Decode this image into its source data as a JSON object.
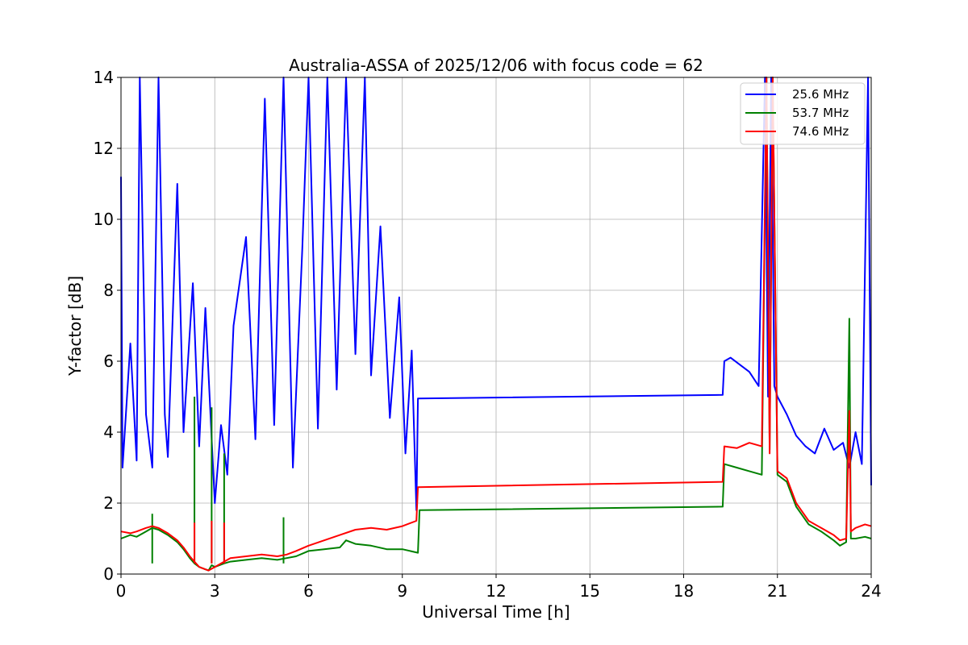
{
  "chart_data": {
    "type": "line",
    "title": "Australia-ASSA of 2025/12/06 with focus code = 62",
    "xlabel": "Universal Time [h]",
    "ylabel": "Y-factor [dB]",
    "xlim": [
      0,
      24
    ],
    "ylim": [
      0,
      14
    ],
    "xticks": [
      0,
      3,
      6,
      9,
      12,
      15,
      18,
      21,
      24
    ],
    "yticks": [
      0,
      2,
      4,
      6,
      8,
      10,
      12,
      14
    ],
    "grid": true,
    "legend_position": "top-right",
    "series": [
      {
        "name": "25.6 MHz",
        "color": "#0000ff",
        "x": [
          0,
          0.05,
          0.3,
          0.5,
          0.6,
          0.8,
          1.0,
          1.2,
          1.4,
          1.5,
          1.8,
          2.0,
          2.3,
          2.5,
          2.7,
          2.9,
          3.0,
          3.2,
          3.4,
          3.6,
          4.0,
          4.3,
          4.6,
          4.9,
          5.2,
          5.5,
          5.8,
          6.0,
          6.3,
          6.6,
          6.9,
          7.2,
          7.5,
          7.8,
          8.0,
          8.3,
          8.6,
          8.9,
          9.1,
          9.3,
          9.45,
          9.5,
          19.25,
          19.3,
          19.5,
          19.8,
          20.1,
          20.4,
          20.6,
          20.7,
          20.8,
          20.9,
          21.0,
          21.3,
          21.6,
          21.9,
          22.2,
          22.5,
          22.8,
          23.1,
          23.3,
          23.5,
          23.7,
          23.9,
          24.0
        ],
        "y": [
          11.2,
          3.0,
          6.5,
          3.2,
          14.0,
          4.5,
          3.0,
          14.0,
          4.5,
          3.3,
          11.0,
          4.0,
          8.2,
          3.6,
          7.5,
          3.8,
          2.0,
          4.2,
          2.8,
          7.0,
          9.5,
          3.8,
          13.4,
          4.2,
          14.0,
          3.0,
          9.2,
          14.0,
          4.1,
          14.0,
          5.2,
          14.0,
          6.2,
          14.0,
          5.6,
          9.8,
          4.4,
          7.8,
          3.4,
          6.3,
          1.8,
          4.95,
          5.05,
          6.0,
          6.1,
          5.9,
          5.7,
          5.3,
          14.0,
          5.0,
          14.0,
          5.3,
          5.0,
          4.5,
          3.9,
          3.6,
          3.4,
          4.1,
          3.5,
          3.7,
          3.0,
          4.0,
          3.1,
          14.0,
          2.5
        ]
      },
      {
        "name": "53.7 MHz",
        "color": "#008000",
        "x": [
          0,
          0.3,
          0.5,
          0.8,
          1.0,
          1.2,
          1.5,
          1.8,
          2.0,
          2.2,
          2.35,
          2.5,
          2.8,
          2.9,
          3.0,
          3.3,
          3.5,
          4.0,
          4.5,
          5.0,
          5.3,
          5.6,
          6.0,
          6.5,
          7.0,
          7.2,
          7.5,
          8.0,
          8.5,
          9.0,
          9.5,
          9.55,
          19.25,
          19.3,
          19.7,
          20.1,
          20.5,
          20.65,
          20.75,
          20.85,
          21.0,
          21.3,
          21.6,
          22.0,
          22.4,
          22.8,
          23.0,
          23.2,
          23.3,
          23.35,
          23.5,
          23.8,
          24.0
        ],
        "y": [
          1.0,
          1.1,
          1.05,
          1.2,
          1.3,
          1.25,
          1.1,
          0.9,
          0.7,
          0.45,
          0.3,
          0.2,
          0.1,
          0.25,
          0.2,
          0.3,
          0.35,
          0.4,
          0.45,
          0.4,
          0.45,
          0.5,
          0.65,
          0.7,
          0.75,
          0.95,
          0.85,
          0.8,
          0.7,
          0.7,
          0.6,
          1.8,
          1.9,
          3.1,
          3.0,
          2.9,
          2.8,
          14.0,
          3.5,
          14.0,
          2.8,
          2.6,
          1.9,
          1.4,
          1.2,
          0.95,
          0.8,
          0.9,
          7.2,
          1.0,
          1.0,
          1.05,
          1.0
        ],
        "spikes": [
          [
            2.35,
            5.0
          ],
          [
            2.9,
            4.7
          ],
          [
            3.3,
            3.4
          ],
          [
            5.2,
            1.6
          ],
          [
            1.0,
            1.7
          ]
        ]
      },
      {
        "name": "74.6 MHz",
        "color": "#ff0000",
        "x": [
          0,
          0.3,
          0.5,
          0.8,
          1.0,
          1.2,
          1.5,
          1.8,
          2.0,
          2.2,
          2.35,
          2.5,
          2.8,
          3.0,
          3.3,
          3.5,
          4.0,
          4.5,
          5.0,
          5.3,
          5.6,
          6.0,
          6.5,
          7.0,
          7.5,
          8.0,
          8.5,
          9.0,
          9.45,
          9.5,
          19.25,
          19.3,
          19.7,
          20.1,
          20.5,
          20.65,
          20.75,
          20.85,
          21.0,
          21.3,
          21.6,
          22.0,
          22.4,
          22.8,
          23.0,
          23.2,
          23.3,
          23.35,
          23.5,
          23.8,
          24.0
        ],
        "y": [
          1.2,
          1.15,
          1.2,
          1.3,
          1.35,
          1.3,
          1.15,
          0.95,
          0.75,
          0.5,
          0.35,
          0.2,
          0.1,
          0.2,
          0.35,
          0.45,
          0.5,
          0.55,
          0.5,
          0.55,
          0.65,
          0.8,
          0.95,
          1.1,
          1.25,
          1.3,
          1.25,
          1.35,
          1.5,
          2.45,
          2.6,
          3.6,
          3.55,
          3.7,
          3.6,
          14.0,
          3.4,
          14.0,
          2.9,
          2.7,
          2.0,
          1.5,
          1.3,
          1.1,
          0.95,
          1.0,
          4.6,
          1.2,
          1.3,
          1.4,
          1.35
        ],
        "spikes": [
          [
            2.35,
            1.45
          ],
          [
            2.9,
            1.5
          ],
          [
            3.3,
            1.45
          ]
        ]
      }
    ]
  }
}
